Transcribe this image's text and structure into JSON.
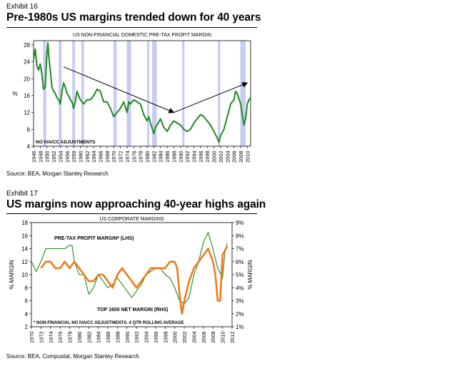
{
  "colors": {
    "green": "#1f8a1f",
    "orange": "#f07a1a",
    "band": "#c8ccf2"
  },
  "exhibit16": {
    "label": "Exhibit 16",
    "title": "Pre-1980s US margins trended down for 40 years",
    "source": "Source: BEA, Morgan Stanley Research",
    "chart_data": {
      "type": "line",
      "title": "US NON-FINANCIAL DOMESTIC PRE-TAX PROFIT MARGIN",
      "ylabel": "%",
      "xlabel": "",
      "ylim": [
        4,
        29
      ],
      "yticks": [
        4,
        8,
        12,
        16,
        20,
        24,
        28
      ],
      "xlim": [
        1946,
        2011
      ],
      "xticks": [
        "1946",
        "1948",
        "1950",
        "1952",
        "1954",
        "1956",
        "1958",
        "1960",
        "1962",
        "1964",
        "1966",
        "1968",
        "1970",
        "1972",
        "1974",
        "1976",
        "1978",
        "1980",
        "1982",
        "1984",
        "1986",
        "1988",
        "1990",
        "1992",
        "1994",
        "1996",
        "1998",
        "2000",
        "2002",
        "2004",
        "2006",
        "2008",
        "2010"
      ],
      "annotation": "NO IVA/CC ADJUSTMENTS",
      "recessions": [
        [
          1948.9,
          1949.8
        ],
        [
          1953.5,
          1954.4
        ],
        [
          1957.6,
          1958.4
        ],
        [
          1960.3,
          1961.1
        ],
        [
          1969.9,
          1970.9
        ],
        [
          1973.9,
          1975.2
        ],
        [
          1980.0,
          1980.6
        ],
        [
          1981.5,
          1982.9
        ],
        [
          1990.5,
          1991.2
        ],
        [
          2001.2,
          2001.9
        ],
        [
          2007.9,
          2009.5
        ]
      ],
      "trend_arrows": [
        {
          "from": [
            1955,
            22.8
          ],
          "to": [
            1988,
            12
          ]
        },
        {
          "from": [
            1988,
            12
          ],
          "to": [
            2010,
            19
          ]
        }
      ],
      "series": [
        {
          "name": "Pre-tax profit margin",
          "x": [
            1946,
            1946.5,
            1947,
            1947.5,
            1948,
            1948.5,
            1949,
            1949.5,
            1950,
            1950.3,
            1950.6,
            1951,
            1951.5,
            1952,
            1952.5,
            1953,
            1953.5,
            1954,
            1954.5,
            1955,
            1955.5,
            1956,
            1956.5,
            1957,
            1957.5,
            1958,
            1958.5,
            1959,
            1959.5,
            1960,
            1960.5,
            1961,
            1961.5,
            1962,
            1963,
            1964,
            1965,
            1966,
            1967,
            1968,
            1969,
            1970,
            1971,
            1972,
            1973,
            1974,
            1974.5,
            1975,
            1976,
            1977,
            1978,
            1979,
            1980,
            1980.5,
            1981,
            1982,
            1982.5,
            1983,
            1984,
            1985,
            1986,
            1987,
            1988,
            1989,
            1990,
            1991,
            1992,
            1993,
            1994,
            1995,
            1996,
            1997,
            1998,
            1999,
            2000,
            2001,
            2001.5,
            2002,
            2003,
            2004,
            2005,
            2006,
            2006.5,
            2007,
            2008,
            2008.5,
            2009,
            2009.5,
            2010,
            2010.5,
            2011
          ],
          "values": [
            24.5,
            27,
            23,
            22,
            23.5,
            21,
            17.5,
            18,
            26,
            28.5,
            25,
            22,
            18,
            17,
            16.5,
            15.5,
            15,
            14,
            17,
            19,
            18,
            16.5,
            16,
            15,
            14.5,
            13,
            14.5,
            17,
            16,
            15,
            14.5,
            14,
            14.5,
            15,
            15,
            16,
            17.5,
            17,
            14.5,
            14.5,
            13,
            11,
            12,
            13,
            14.5,
            12,
            14.5,
            14,
            15,
            14.5,
            14,
            11.5,
            10,
            11,
            9.5,
            7,
            8.5,
            9,
            10.5,
            8.5,
            7.5,
            9,
            10,
            9.5,
            9,
            8,
            7.5,
            8,
            9.5,
            10.5,
            11.5,
            11,
            10,
            9,
            7.5,
            6,
            5,
            6.5,
            8,
            11,
            14,
            15,
            17,
            16.5,
            14,
            11.5,
            9,
            10.5,
            14,
            15,
            15.5
          ]
        }
      ]
    }
  },
  "exhibit17": {
    "label": "Exhibit 17",
    "title": "US margins now approaching 40-year highs again",
    "source": "Source: BEA, Compustat, Morgan Stanley Research",
    "chart_data": {
      "type": "line",
      "title": "US CORPORATE MARGINS",
      "ylabel_left": "% MARGIN",
      "ylabel_right": "% MARGIN",
      "ylim_left": [
        2,
        18
      ],
      "yticks_left": [
        2,
        4,
        6,
        8,
        10,
        12,
        14,
        16,
        18
      ],
      "ylim_right": [
        1,
        9
      ],
      "yticks_right": [
        "1%",
        "2%",
        "3%",
        "4%",
        "5%",
        "6%",
        "7%",
        "8%",
        "9%"
      ],
      "xlim": [
        1970,
        2012
      ],
      "xticks": [
        "1970",
        "1972",
        "1974",
        "1976",
        "1978",
        "1980",
        "1982",
        "1984",
        "1986",
        "1988",
        "1990",
        "1992",
        "1994",
        "1996",
        "1998",
        "2000",
        "2002",
        "2004",
        "2006",
        "2008",
        "2010",
        "2012"
      ],
      "legend_lhs": "PRE-TAX PROFIT MARGIN* (LHS)",
      "legend_rhs": "TOP 1600 NET MARGIN (RHS)",
      "footnote": "* NON-FINANCIAL NO IVA/CC ADJUSTMENTS. 4 QTR ROLLING AVERAGE",
      "series": [
        {
          "name": "PRE-TAX PROFIT MARGIN* (LHS)",
          "axis": "left",
          "x": [
            1970,
            1971,
            1972,
            1973,
            1974,
            1975,
            1976,
            1977,
            1978,
            1978.5,
            1979,
            1980,
            1981,
            1982,
            1983,
            1984,
            1985,
            1986,
            1987,
            1988,
            1989,
            1990,
            1991,
            1992,
            1993,
            1994,
            1995,
            1996,
            1997,
            1998,
            1999,
            2000,
            2001,
            2002,
            2003,
            2004,
            2005,
            2006,
            2007,
            2008,
            2009,
            2010,
            2010.5,
            2011
          ],
          "values": [
            12,
            10.5,
            12,
            14,
            14,
            14,
            14,
            14,
            14.5,
            14.5,
            12,
            10,
            10,
            7,
            8,
            10,
            9,
            8,
            8.5,
            9.5,
            8.5,
            7.5,
            6.5,
            7.5,
            8.5,
            10,
            10.5,
            11,
            11,
            10,
            9.5,
            8,
            6,
            5.5,
            6.5,
            10,
            12,
            15,
            16.5,
            14,
            11,
            9.5,
            13.5,
            14.8
          ]
        },
        {
          "name": "TOP 1600 NET MARGIN (RHS)",
          "axis": "right",
          "x": [
            1972,
            1973,
            1974,
            1975,
            1976,
            1977,
            1978,
            1979,
            1980,
            1981,
            1982,
            1983,
            1984,
            1985,
            1986,
            1987,
            1988,
            1989,
            1990,
            1991,
            1992,
            1993,
            1994,
            1995,
            1996,
            1997,
            1998,
            1999,
            2000,
            2000.5,
            2001,
            2001.5,
            2002,
            2003,
            2004,
            2005,
            2006,
            2007,
            2007.5,
            2008,
            2008.5,
            2009,
            2009.5,
            2010,
            2011
          ],
          "values": [
            5.5,
            6,
            6,
            5.5,
            5.5,
            6,
            5.5,
            6,
            5.5,
            5,
            4.5,
            4.5,
            5,
            5,
            4.5,
            4,
            5,
            5.5,
            5,
            4.5,
            4,
            4.5,
            5,
            5.5,
            5.5,
            5.5,
            5.5,
            6,
            6,
            5.5,
            3.5,
            2,
            3,
            4.5,
            5.5,
            6,
            6.5,
            7,
            6.5,
            6,
            5,
            3,
            3,
            6.5,
            7.2
          ]
        }
      ]
    }
  }
}
